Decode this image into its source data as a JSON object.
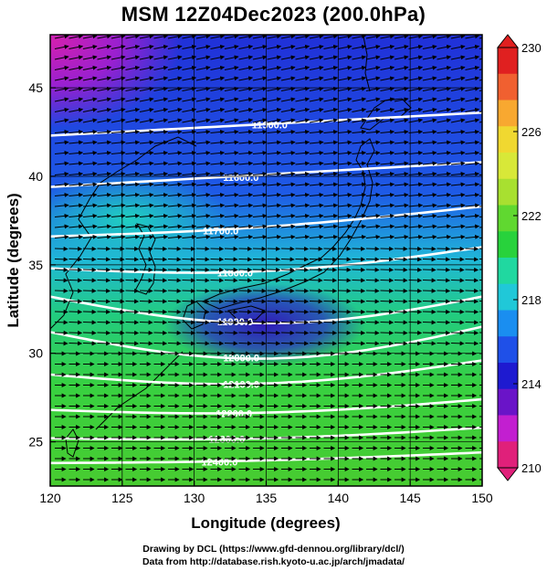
{
  "title": "MSM 12Z04Dec2023 (200.0hPa)",
  "footer": {
    "line1": "Drawing by DCL (https://www.gfd-dennou.org/library/dcl/)",
    "line2": "Data from http://database.rish.kyoto-u.ac.jp/arch/jmadata/"
  },
  "map": {
    "xlabel": "Longitude (degrees)",
    "ylabel": "Latitude  (degrees)",
    "xlim": [
      120,
      150
    ],
    "ylim": [
      22.5,
      48
    ],
    "xticks": [
      "120",
      "125",
      "130",
      "135",
      "140",
      "145",
      "150"
    ],
    "yticks": [
      "25",
      "30",
      "35",
      "40",
      "45"
    ],
    "ytick_values": [
      25,
      30,
      35,
      40,
      45
    ],
    "contour_labels": [
      "11500.0",
      "11600.0",
      "11700.0",
      "11800.0",
      "11900.0",
      "12000.0",
      "12100.0",
      "12200.0",
      "12300.0",
      "12400.0"
    ],
    "contour_values": [
      11500,
      11600,
      11700,
      11800,
      11900,
      12000,
      12100,
      12200,
      12300,
      12400
    ]
  },
  "colorbar": {
    "ticks": [
      "230",
      "226",
      "222",
      "218",
      "214",
      "210"
    ],
    "tick_values": [
      230,
      226,
      222,
      218,
      214,
      210
    ],
    "range": [
      210,
      230
    ],
    "colors": [
      "#e0207a",
      "#c21fd0",
      "#6a14c8",
      "#1e1ad0",
      "#1f50e8",
      "#1a8ef0",
      "#20c8d8",
      "#20d8a0",
      "#28d23c",
      "#60d830",
      "#a8e030",
      "#d8e838",
      "#f0d830",
      "#f8a830",
      "#f06030",
      "#e02020"
    ]
  }
}
